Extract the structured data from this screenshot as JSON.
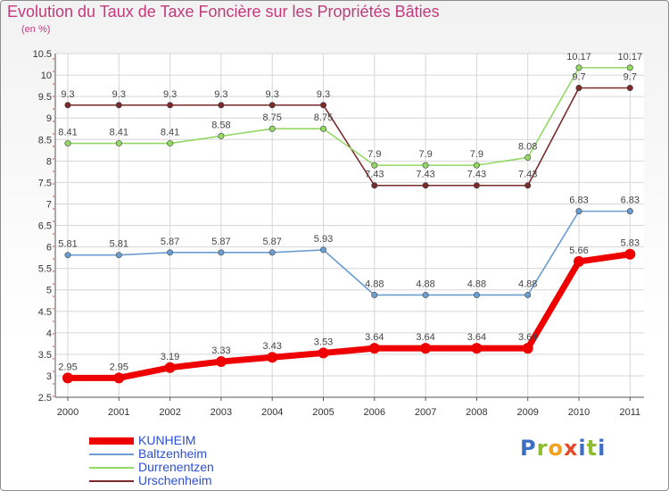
{
  "title": "Evolution du Taux de Taxe Foncière sur les Propriétés Bâties",
  "subtitle": "(en %)",
  "logo": "Proxiti",
  "chart_data": {
    "type": "line",
    "title": "Evolution du Taux de Taxe Foncière sur les Propriétés Bâties",
    "ylabel": "(en %)",
    "xlabel": "",
    "ylim": [
      2.5,
      10.5
    ],
    "yticks": [
      "2.5",
      "3",
      "3.5",
      "4",
      "4.5",
      "5",
      "5.5",
      "6",
      "6.5",
      "7",
      "7.5",
      "8",
      "8.5",
      "9",
      "9.5",
      "10",
      "10.5"
    ],
    "categories": [
      "2000",
      "2001",
      "2002",
      "2003",
      "2004",
      "2005",
      "2006",
      "2007",
      "2008",
      "2009",
      "2010",
      "2011"
    ],
    "grid": true,
    "legend_position": "bottom-left",
    "series": [
      {
        "name": "KUNHEIM",
        "color": "#ee0000",
        "values": [
          2.95,
          2.95,
          3.19,
          3.33,
          3.43,
          3.53,
          3.64,
          3.64,
          3.64,
          3.64,
          5.66,
          5.83
        ],
        "labels": [
          "2.95",
          "2.95",
          "3.19",
          "3.33",
          "3.43",
          "3.53",
          "3.64",
          "3.64",
          "3.64",
          "3.64",
          "5.66",
          "5.83"
        ]
      },
      {
        "name": "Baltzenheim",
        "color": "#6b9dd0",
        "values": [
          5.81,
          5.81,
          5.87,
          5.87,
          5.87,
          5.93,
          4.88,
          4.88,
          4.88,
          4.88,
          6.83,
          6.83
        ],
        "labels": [
          "5.81",
          "5.81",
          "5.87",
          "5.87",
          "5.87",
          "5.93",
          "4.88",
          "4.88",
          "4.88",
          "4.88",
          "6.83",
          "6.83"
        ]
      },
      {
        "name": "Durrenentzen",
        "color": "#93d864",
        "values": [
          8.41,
          8.41,
          8.41,
          8.58,
          8.75,
          8.75,
          7.9,
          7.9,
          7.9,
          8.08,
          10.17,
          10.17
        ],
        "labels": [
          "8.41",
          "8.41",
          "8.41",
          "8.58",
          "8.75",
          "8.75",
          "7.9",
          "7.9",
          "7.9",
          "8.08",
          "10.17",
          "10.17"
        ]
      },
      {
        "name": "Urschenheim",
        "color": "#7a2a2a",
        "values": [
          9.3,
          9.3,
          9.3,
          9.3,
          9.3,
          9.3,
          7.43,
          7.43,
          7.43,
          7.43,
          9.7,
          9.7
        ],
        "labels": [
          "9.3",
          "9.3",
          "9.3",
          "9.3",
          "9.3",
          "9.3",
          "7.43",
          "7.43",
          "7.43",
          "7.43",
          "9.7",
          "9.7"
        ]
      }
    ]
  }
}
